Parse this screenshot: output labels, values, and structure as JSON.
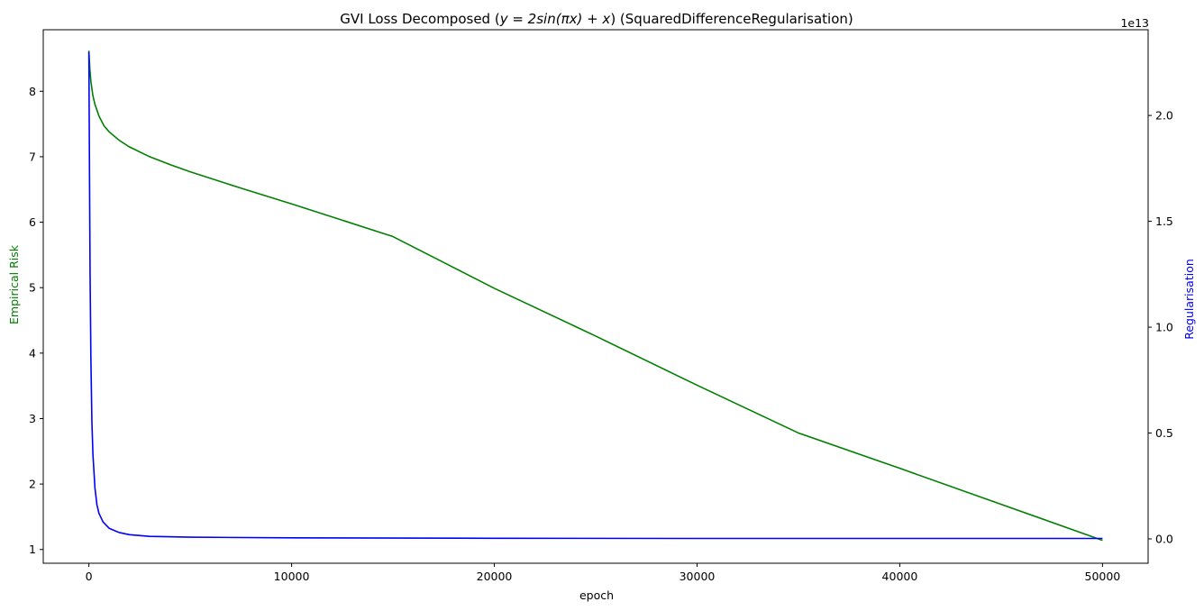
{
  "chart_data": {
    "type": "line",
    "title": "GVI Loss Decomposed ($y=2\\sin(\\pi x)+x$) (SquaredDifferenceRegularisation)",
    "title_parts": {
      "prefix": "GVI Loss Decomposed (",
      "math": "y = 2sin(πx) + x",
      "suffix": ") (SquaredDifferenceRegularisation)"
    },
    "xlabel": "epoch",
    "ylabel_left": "Empirical Risk",
    "ylabel_right": "Regularisation",
    "right_axis_offset_label": "1e13",
    "xlim": [
      -2250,
      52250
    ],
    "ylim_left": [
      0.79,
      8.94
    ],
    "ylim_right": [
      -0.115,
      2.405
    ],
    "x_ticks": [
      0,
      10000,
      20000,
      30000,
      40000,
      50000
    ],
    "x_tick_labels": [
      "0",
      "10000",
      "20000",
      "30000",
      "40000",
      "50000"
    ],
    "y_left_ticks": [
      1,
      2,
      3,
      4,
      5,
      6,
      7,
      8
    ],
    "y_left_tick_labels": [
      "1",
      "2",
      "3",
      "4",
      "5",
      "6",
      "7",
      "8"
    ],
    "y_right_ticks": [
      0.0,
      0.5,
      1.0,
      1.5,
      2.0
    ],
    "y_right_tick_labels": [
      "0.0",
      "0.5",
      "1.0",
      "1.5",
      "2.0"
    ],
    "grid": false,
    "legend": "none",
    "series": [
      {
        "axis": "left",
        "color": "#008000",
        "x": [
          0,
          50,
          100,
          200,
          300,
          500,
          750,
          1000,
          1500,
          2000,
          3000,
          4000,
          5000,
          7500,
          10000,
          15000,
          20000,
          25000,
          30000,
          35000,
          40000,
          45000,
          50000
        ],
        "y": [
          8.62,
          8.33,
          8.15,
          7.93,
          7.8,
          7.62,
          7.47,
          7.38,
          7.25,
          7.15,
          7.0,
          6.88,
          6.77,
          6.52,
          6.28,
          5.78,
          4.99,
          4.26,
          3.51,
          2.78,
          2.24,
          1.69,
          1.14
        ]
      },
      {
        "axis": "right",
        "color": "#0000ff",
        "x": [
          0,
          30,
          60,
          100,
          150,
          200,
          300,
          400,
          500,
          700,
          1000,
          1500,
          2000,
          3000,
          5000,
          10000,
          20000,
          30000,
          40000,
          50000
        ],
        "y": [
          2.3,
          1.75,
          1.25,
          0.85,
          0.55,
          0.4,
          0.24,
          0.16,
          0.12,
          0.08,
          0.05,
          0.03,
          0.02,
          0.012,
          0.008,
          0.005,
          0.003,
          0.002,
          0.002,
          0.002
        ]
      }
    ]
  }
}
